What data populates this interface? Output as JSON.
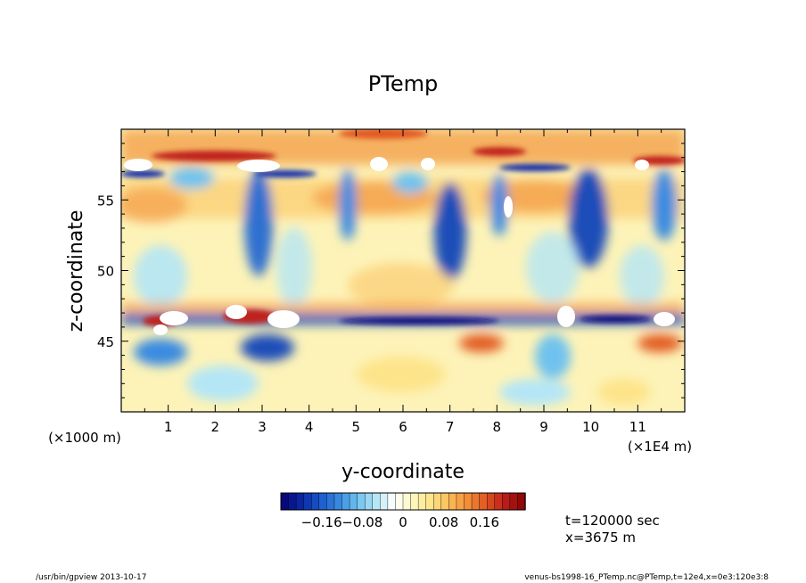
{
  "chart_data": {
    "type": "heatmap",
    "title": "PTemp",
    "xlabel": "y-coordinate",
    "ylabel": "z-coordinate",
    "x_unit_label": "(×1E4 m)",
    "y_unit_label": "(×1000 m)",
    "x_ticks": [
      "1",
      "2",
      "3",
      "4",
      "5",
      "6",
      "7",
      "8",
      "9",
      "10",
      "11"
    ],
    "y_ticks": [
      "45",
      "50",
      "55"
    ],
    "xlim": [
      0,
      12
    ],
    "ylim": [
      40,
      60
    ],
    "colorbar": {
      "vmin": -0.24,
      "vmax": 0.24,
      "ticks": [
        "−0.16",
        "−0.08",
        "0",
        "0.08",
        "0.16"
      ],
      "tick_values": [
        -0.16,
        -0.08,
        0,
        0.08,
        0.16
      ],
      "colors": [
        "#08087a",
        "#0a2aa8",
        "#1a5ccc",
        "#3a8be0",
        "#6fc2ee",
        "#b4e6f6",
        "#ffffff",
        "#fdf7c0",
        "#fde48a",
        "#fbc05a",
        "#f49038",
        "#e25a22",
        "#c0201a",
        "#900808"
      ]
    },
    "annotations": [
      "t=120000 sec",
      "x=3675 m"
    ]
  },
  "footer": {
    "left": "/usr/bin/gpview   2013-10-17",
    "right": "venus-bs1998-16_PTemp.nc@PTemp,t=12e4,x=0e3:120e3:8"
  }
}
